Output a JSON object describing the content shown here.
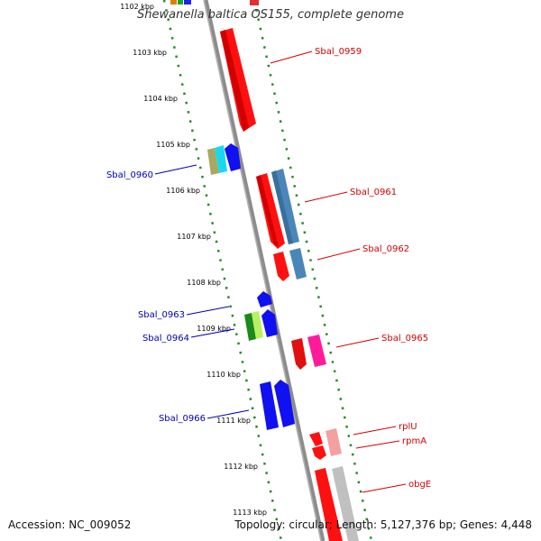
{
  "title": "Shewanella baltica OS155, complete genome",
  "accession": "Accession: NC_009052",
  "summary": "Topology: circular; Length: 5,127,376 bp; Genes: 4,448",
  "ticks": [
    "1102 kbp",
    "1103 kbp",
    "1104 kbp",
    "1105 kbp",
    "1106 kbp",
    "1107 kbp",
    "1108 kbp",
    "1109 kbp",
    "1110 kbp",
    "1111 kbp",
    "1112 kbp",
    "1113 kbp"
  ],
  "gene_labels": {
    "reverse_strand": [
      "Sbal_0959",
      "Sbal_0961",
      "Sbal_0962",
      "Sbal_0965",
      "rplU",
      "rpmA",
      "obgE"
    ],
    "forward_strand": [
      "Sbal_0960",
      "Sbal_0963",
      "Sbal_0964",
      "Sbal_0966"
    ]
  },
  "colors": {
    "reverse_label": "#d40000",
    "forward_label": "#0000b4",
    "backbone": "#8c8c8c",
    "tick_dots": "#2a8a2a"
  }
}
